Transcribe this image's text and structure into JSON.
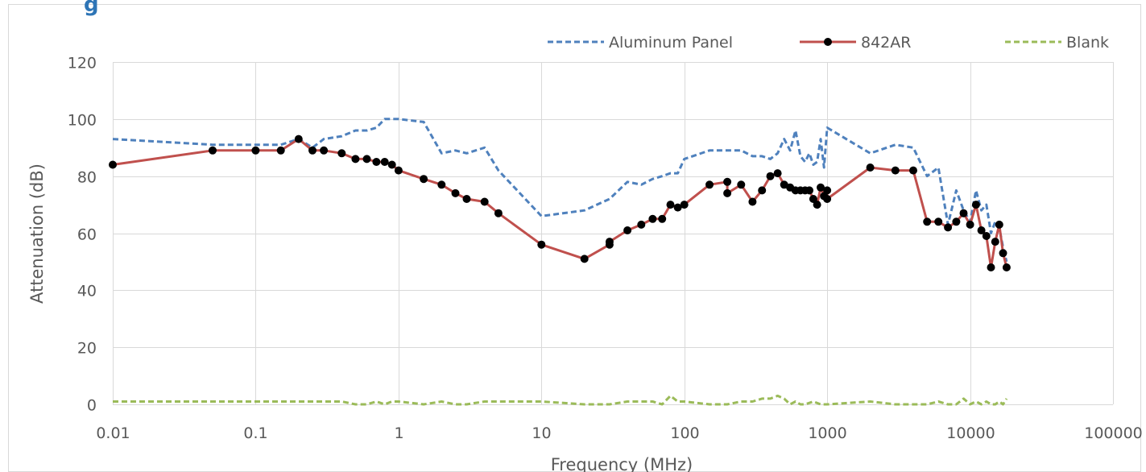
{
  "header": {
    "title_fragment": "g"
  },
  "chart_data": {
    "type": "line",
    "title": "",
    "xlabel": "Frequency (MHz)",
    "ylabel": "Attenuation (dB)",
    "xscale": "log",
    "xlim": [
      0.01,
      100000
    ],
    "ylim": [
      0,
      120
    ],
    "x_ticks": [
      "0.01",
      "0.1",
      "1",
      "10",
      "100",
      "1000",
      "10000",
      "100000"
    ],
    "y_ticks": [
      "0",
      "20",
      "40",
      "60",
      "80",
      "100",
      "120"
    ],
    "grid": true,
    "legend_position": "top-right",
    "series": [
      {
        "name": "Aluminum Panel",
        "color": "#4f81bd",
        "style": "dashed",
        "markers": false,
        "x": [
          0.01,
          0.05,
          0.1,
          0.15,
          0.2,
          0.25,
          0.3,
          0.4,
          0.5,
          0.6,
          0.7,
          0.8,
          0.9,
          1,
          1.5,
          2,
          2.5,
          3,
          4,
          5,
          10,
          20,
          30,
          40,
          50,
          60,
          70,
          80,
          90,
          100,
          150,
          200,
          250,
          300,
          350,
          400,
          450,
          500,
          550,
          600,
          650,
          700,
          750,
          800,
          850,
          900,
          950,
          1000,
          2000,
          3000,
          4000,
          5000,
          6000,
          7000,
          8000,
          9000,
          10000,
          11000,
          12000,
          13000,
          14000,
          15000,
          16000,
          17000,
          18000
        ],
        "y": [
          93,
          91,
          91,
          91,
          93,
          90,
          93,
          94,
          96,
          96,
          97,
          100,
          100,
          100,
          99,
          88,
          89,
          88,
          90,
          82,
          66,
          68,
          72,
          78,
          77,
          79,
          80,
          81,
          81,
          86,
          89,
          89,
          89,
          87,
          87,
          86,
          88,
          93,
          89,
          96,
          87,
          85,
          88,
          84,
          85,
          93,
          83,
          97,
          88,
          91,
          90,
          80,
          83,
          63,
          75,
          68,
          64,
          75,
          68,
          70,
          60,
          64,
          62,
          55,
          50
        ]
      },
      {
        "name": "842AR",
        "color": "#c0504d",
        "style": "solid",
        "markers": true,
        "marker_color": "#000000",
        "x": [
          0.01,
          0.05,
          0.1,
          0.15,
          0.2,
          0.25,
          0.3,
          0.4,
          0.5,
          0.6,
          0.7,
          0.8,
          0.9,
          1,
          1.5,
          2,
          2.5,
          3,
          4,
          5,
          10,
          20,
          30,
          30,
          40,
          50,
          60,
          70,
          80,
          90,
          100,
          150,
          200,
          200,
          250,
          300,
          350,
          400,
          450,
          500,
          550,
          600,
          650,
          700,
          750,
          800,
          850,
          900,
          950,
          1000,
          1000,
          2000,
          3000,
          4000,
          5000,
          6000,
          7000,
          8000,
          9000,
          10000,
          11000,
          12000,
          13000,
          14000,
          15000,
          16000,
          17000,
          18000
        ],
        "y": [
          84,
          89,
          89,
          89,
          93,
          89,
          89,
          88,
          86,
          86,
          85,
          85,
          84,
          82,
          79,
          77,
          74,
          72,
          71,
          67,
          56,
          51,
          56,
          57,
          61,
          63,
          65,
          65,
          70,
          69,
          70,
          77,
          78,
          74,
          77,
          71,
          75,
          80,
          81,
          77,
          76,
          75,
          75,
          75,
          75,
          72,
          70,
          76,
          73,
          75,
          72,
          83,
          82,
          82,
          64,
          64,
          62,
          64,
          67,
          63,
          70,
          61,
          59,
          48,
          57,
          63,
          53,
          48
        ]
      },
      {
        "name": "Blank",
        "color": "#9bbb59",
        "style": "dashed",
        "markers": false,
        "x": [
          0.01,
          0.05,
          0.1,
          0.15,
          0.2,
          0.3,
          0.4,
          0.5,
          0.6,
          0.7,
          0.8,
          0.9,
          1,
          1.5,
          2,
          2.5,
          3,
          4,
          5,
          10,
          20,
          30,
          40,
          50,
          60,
          70,
          80,
          90,
          100,
          150,
          200,
          250,
          300,
          350,
          400,
          450,
          500,
          550,
          600,
          650,
          700,
          800,
          900,
          1000,
          2000,
          3000,
          4000,
          5000,
          6000,
          7000,
          8000,
          9000,
          10000,
          11000,
          12000,
          13000,
          14000,
          15000,
          16000,
          17000,
          18000
        ],
        "y": [
          1,
          1,
          1,
          1,
          1,
          1,
          1,
          0,
          0,
          1,
          0,
          1,
          1,
          0,
          1,
          0,
          0,
          1,
          1,
          1,
          0,
          0,
          1,
          1,
          1,
          0,
          3,
          1,
          1,
          0,
          0,
          1,
          1,
          2,
          2,
          3,
          2,
          0,
          1,
          0,
          0,
          1,
          0,
          0,
          1,
          0,
          0,
          0,
          1,
          0,
          0,
          2,
          0,
          1,
          0,
          1,
          0,
          0,
          1,
          0,
          2
        ]
      }
    ]
  }
}
